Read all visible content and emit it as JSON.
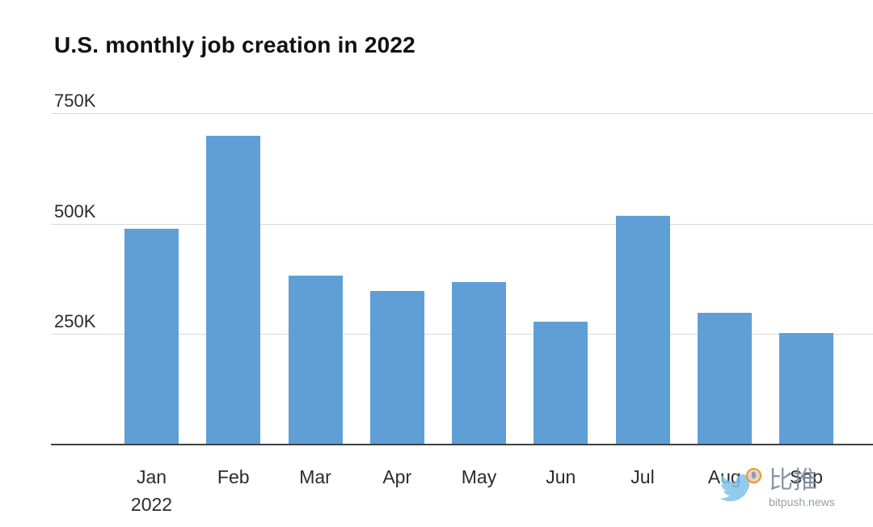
{
  "title": "U.S. monthly job creation in 2022",
  "chart_data": {
    "type": "bar",
    "title": "U.S. monthly job creation in 2022",
    "categories": [
      "Jan",
      "Feb",
      "Mar",
      "Apr",
      "May",
      "Jun",
      "Jul",
      "Aug",
      "Sep"
    ],
    "x_first_sublabel": "2022",
    "values": [
      490,
      700,
      385,
      350,
      370,
      280,
      520,
      300,
      255
    ],
    "value_unit": "K",
    "y_ticks": [
      250,
      500,
      750
    ],
    "y_tick_labels": [
      "250K",
      "500K",
      "750K"
    ],
    "ylim": [
      0,
      750
    ],
    "grid": true,
    "legend": "none",
    "bar_color": "#5f9fd6",
    "gridline_color": "#d8d8d8",
    "axis_line_color": "#404040"
  },
  "watermark": {
    "brand_cn": "比推",
    "brand_domain": "bitpush.news",
    "bird_icon": "twitter-bird-icon",
    "coin_icon": "bitcoin-coin-icon",
    "coin_glyph": "฿"
  }
}
